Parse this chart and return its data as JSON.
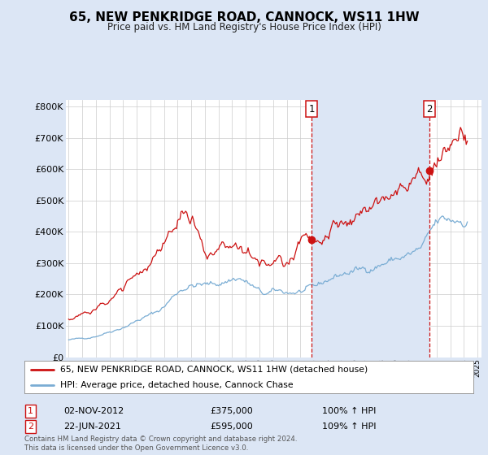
{
  "title": "65, NEW PENKRIDGE ROAD, CANNOCK, WS11 1HW",
  "subtitle": "Price paid vs. HM Land Registry's House Price Index (HPI)",
  "ylim": [
    0,
    820000
  ],
  "yticks": [
    0,
    100000,
    200000,
    300000,
    400000,
    500000,
    600000,
    700000,
    800000
  ],
  "ytick_labels": [
    "£0",
    "£100K",
    "£200K",
    "£300K",
    "£400K",
    "£500K",
    "£600K",
    "£700K",
    "£800K"
  ],
  "xlim_left": 1994.8,
  "xlim_right": 2025.3,
  "background_color": "#dce6f5",
  "plot_bg_color": "#ffffff",
  "shade_color": "#dce6f5",
  "hpi_color": "#7aadd4",
  "price_color": "#cc1111",
  "annotation1_date": "02-NOV-2012",
  "annotation1_price": 375000,
  "annotation1_year": 2012.84,
  "annotation1_label": "1",
  "annotation1_hpi_pct": "100% ↑ HPI",
  "annotation2_date": "22-JUN-2021",
  "annotation2_price": 595000,
  "annotation2_year": 2021.47,
  "annotation2_label": "2",
  "annotation2_hpi_pct": "109% ↑ HPI",
  "legend_line1": "65, NEW PENKRIDGE ROAD, CANNOCK, WS11 1HW (detached house)",
  "legend_line2": "HPI: Average price, detached house, Cannock Chase",
  "footer": "Contains HM Land Registry data © Crown copyright and database right 2024.\nThis data is licensed under the Open Government Licence v3.0."
}
